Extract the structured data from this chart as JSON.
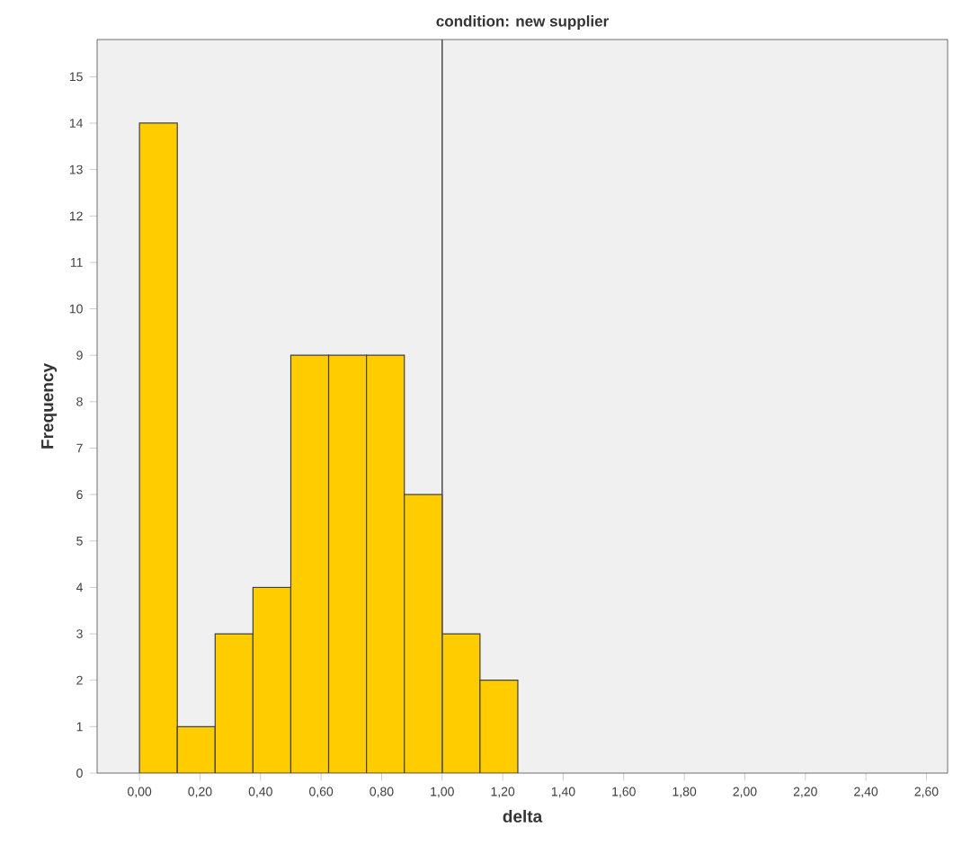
{
  "chart_data": {
    "type": "histogram",
    "title": "condition: new supplier",
    "xlabel": "delta",
    "ylabel": "Frequency",
    "bins": [
      0,
      0.125,
      0.25,
      0.375,
      0.5,
      0.625,
      0.75,
      0.875,
      1.0,
      1.125,
      1.25
    ],
    "values": [
      14,
      1,
      3,
      4,
      9,
      9,
      9,
      6,
      3,
      2
    ],
    "color": "#ffcc00",
    "xlim": [
      -0.14,
      2.67
    ],
    "ylim": [
      0,
      15.8
    ],
    "xticks": [
      {
        "value": 0,
        "label": "0,00"
      },
      {
        "value": 0.2,
        "label": "0,20"
      },
      {
        "value": 0.4,
        "label": "0,40"
      },
      {
        "value": 0.6,
        "label": "0,60"
      },
      {
        "value": 0.8,
        "label": "0,80"
      },
      {
        "value": 1.0,
        "label": "1,00"
      },
      {
        "value": 1.2,
        "label": "1,20"
      },
      {
        "value": 1.4,
        "label": "1,40"
      },
      {
        "value": 1.6,
        "label": "1,60"
      },
      {
        "value": 1.8,
        "label": "1,80"
      },
      {
        "value": 2.0,
        "label": "2,00"
      },
      {
        "value": 2.2,
        "label": "2,20"
      },
      {
        "value": 2.4,
        "label": "2,40"
      },
      {
        "value": 2.6,
        "label": "2,60"
      }
    ],
    "yticks": [
      0,
      1,
      2,
      3,
      4,
      5,
      6,
      7,
      8,
      9,
      10,
      11,
      12,
      13,
      14,
      15
    ],
    "ref_lines": [
      {
        "axis": "x",
        "value": 1.0,
        "color": "#555555"
      }
    ],
    "grid": false
  }
}
